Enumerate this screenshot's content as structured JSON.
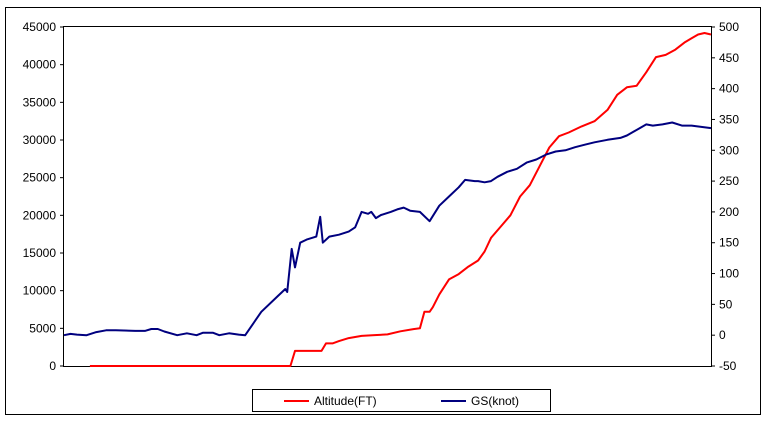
{
  "chart_data": {
    "type": "line",
    "title": "",
    "xlabel": "",
    "ylabel": "",
    "y_left": {
      "min": 0,
      "max": 45000,
      "step": 5000,
      "ticks": [
        "0",
        "5000",
        "10000",
        "15000",
        "20000",
        "25000",
        "30000",
        "35000",
        "40000",
        "45000"
      ]
    },
    "y_right": {
      "min": -50,
      "max": 500,
      "step": 50,
      "ticks": [
        "-50",
        "0",
        "50",
        "100",
        "150",
        "200",
        "250",
        "300",
        "350",
        "400",
        "450",
        "500"
      ]
    },
    "x_range": [
      0,
      100
    ],
    "grid": false,
    "legend_position": "bottom",
    "series": [
      {
        "name": "Altitude(FT)",
        "axis": "left",
        "color": "#ff0000",
        "points": [
          [
            4,
            0
          ],
          [
            18,
            0
          ],
          [
            22,
            0
          ],
          [
            35,
            0
          ],
          [
            35.7,
            2000
          ],
          [
            39,
            2000
          ],
          [
            39.8,
            2000
          ],
          [
            40.5,
            3000
          ],
          [
            41.5,
            3000
          ],
          [
            42.5,
            3300
          ],
          [
            44,
            3700
          ],
          [
            46,
            4000
          ],
          [
            48,
            4100
          ],
          [
            50,
            4200
          ],
          [
            52,
            4600
          ],
          [
            54,
            4900
          ],
          [
            55,
            5000
          ],
          [
            55.7,
            7200
          ],
          [
            56.5,
            7200
          ],
          [
            57,
            7800
          ],
          [
            58,
            9500
          ],
          [
            59.5,
            11500
          ],
          [
            61,
            12200
          ],
          [
            62.5,
            13200
          ],
          [
            64,
            14000
          ],
          [
            65,
            15200
          ],
          [
            66,
            17000
          ],
          [
            67.5,
            18500
          ],
          [
            69,
            20000
          ],
          [
            70.5,
            22500
          ],
          [
            72,
            24000
          ],
          [
            73.5,
            26500
          ],
          [
            75,
            29000
          ],
          [
            76.5,
            30500
          ],
          [
            78,
            31000
          ],
          [
            80,
            31800
          ],
          [
            82,
            32500
          ],
          [
            84,
            34000
          ],
          [
            85.5,
            36000
          ],
          [
            87,
            37000
          ],
          [
            88.5,
            37200
          ],
          [
            90,
            39000
          ],
          [
            91.5,
            41000
          ],
          [
            93,
            41300
          ],
          [
            94.5,
            42000
          ],
          [
            96,
            43000
          ],
          [
            97,
            43500
          ],
          [
            98,
            44000
          ],
          [
            99,
            44200
          ],
          [
            100,
            44000
          ]
        ]
      },
      {
        "name": "GS(knot)",
        "axis": "right",
        "color": "#00007f",
        "points": [
          [
            0,
            0
          ],
          [
            1,
            2
          ],
          [
            2,
            1
          ],
          [
            3.5,
            0
          ],
          [
            5,
            5
          ],
          [
            6.5,
            8
          ],
          [
            8,
            8
          ],
          [
            11,
            7
          ],
          [
            12.5,
            7
          ],
          [
            13.5,
            10
          ],
          [
            14.5,
            10
          ],
          [
            15.5,
            6
          ],
          [
            17.5,
            0
          ],
          [
            19,
            3
          ],
          [
            20.5,
            0
          ],
          [
            21.5,
            4
          ],
          [
            23,
            4
          ],
          [
            24,
            0
          ],
          [
            25.5,
            3
          ],
          [
            27,
            1
          ],
          [
            28,
            0
          ],
          [
            30.5,
            38
          ],
          [
            33,
            63
          ],
          [
            34.2,
            75
          ],
          [
            34.5,
            70
          ],
          [
            35.2,
            140
          ],
          [
            35.7,
            110
          ],
          [
            36.5,
            150
          ],
          [
            37.5,
            155
          ],
          [
            39,
            160
          ],
          [
            39.6,
            192
          ],
          [
            40,
            150
          ],
          [
            41,
            160
          ],
          [
            42.5,
            163
          ],
          [
            44,
            168
          ],
          [
            45,
            175
          ],
          [
            46,
            200
          ],
          [
            47,
            197
          ],
          [
            47.5,
            200
          ],
          [
            48.2,
            190
          ],
          [
            49,
            195
          ],
          [
            50.5,
            200
          ],
          [
            51.5,
            204
          ],
          [
            52.5,
            207
          ],
          [
            53.5,
            202
          ],
          [
            55,
            200
          ],
          [
            56.5,
            185
          ],
          [
            58,
            210
          ],
          [
            59.5,
            225
          ],
          [
            61,
            240
          ],
          [
            62,
            252
          ],
          [
            63.5,
            250
          ],
          [
            64,
            250
          ],
          [
            65,
            248
          ],
          [
            66,
            250
          ],
          [
            67,
            257
          ],
          [
            68.5,
            265
          ],
          [
            70,
            270
          ],
          [
            71.5,
            280
          ],
          [
            73,
            285
          ],
          [
            74.5,
            293
          ],
          [
            76,
            298
          ],
          [
            77.5,
            300
          ],
          [
            79,
            305
          ],
          [
            80.5,
            309
          ],
          [
            82,
            313
          ],
          [
            84,
            317
          ],
          [
            86,
            320
          ],
          [
            87,
            324
          ],
          [
            88,
            330
          ],
          [
            89,
            336
          ],
          [
            90,
            342
          ],
          [
            91,
            340
          ],
          [
            92.5,
            342
          ],
          [
            94,
            345
          ],
          [
            95.5,
            340
          ],
          [
            97,
            340
          ],
          [
            98.5,
            338
          ],
          [
            100,
            336
          ]
        ]
      }
    ]
  }
}
